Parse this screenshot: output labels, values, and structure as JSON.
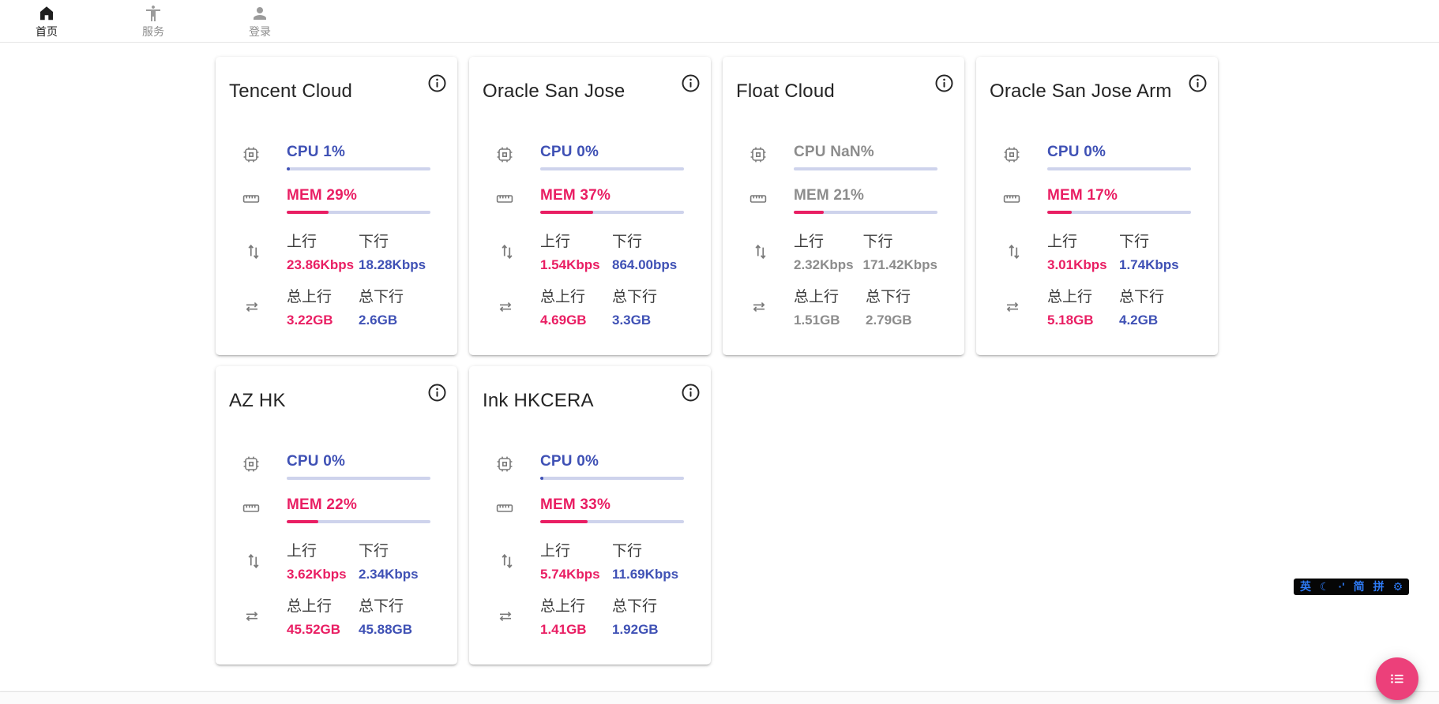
{
  "nav": {
    "home": {
      "label": "首页"
    },
    "services": {
      "label": "服务"
    },
    "login": {
      "label": "登录"
    }
  },
  "colors": {
    "accent_blue": "#3f51b5",
    "accent_pink": "#e91e63",
    "bar_track": "#ced3ec",
    "fab_pink": "#ec407a",
    "ime_blue": "#2e7bf6"
  },
  "servers": [
    {
      "name": "Tencent Cloud",
      "offline": false,
      "cpu_label": "CPU 1%",
      "cpu_bar_pct": 2,
      "mem_label": "MEM 29%",
      "mem_bar_pct": 29,
      "up_label": "上行",
      "up_value": "23.86Kbps",
      "down_label": "下行",
      "down_value": "18.28Kbps",
      "total_up_label": "总上行",
      "total_up_value": "3.22GB",
      "total_down_label": "总下行",
      "total_down_value": "2.6GB"
    },
    {
      "name": "Oracle San Jose",
      "offline": false,
      "cpu_label": "CPU 0%",
      "cpu_bar_pct": 0,
      "mem_label": "MEM 37%",
      "mem_bar_pct": 37,
      "up_label": "上行",
      "up_value": "1.54Kbps",
      "down_label": "下行",
      "down_value": "864.00bps",
      "total_up_label": "总上行",
      "total_up_value": "4.69GB",
      "total_down_label": "总下行",
      "total_down_value": "3.3GB"
    },
    {
      "name": "Float Cloud",
      "offline": true,
      "cpu_label": "CPU NaN%",
      "cpu_bar_pct": 0,
      "mem_label": "MEM 21%",
      "mem_bar_pct": 21,
      "up_label": "上行",
      "up_value": "2.32Kbps",
      "down_label": "下行",
      "down_value": "171.42Kbps",
      "total_up_label": "总上行",
      "total_up_value": "1.51GB",
      "total_down_label": "总下行",
      "total_down_value": "2.79GB"
    },
    {
      "name": "Oracle San Jose Arm",
      "offline": false,
      "cpu_label": "CPU 0%",
      "cpu_bar_pct": 0,
      "mem_label": "MEM 17%",
      "mem_bar_pct": 17,
      "up_label": "上行",
      "up_value": "3.01Kbps",
      "down_label": "下行",
      "down_value": "1.74Kbps",
      "total_up_label": "总上行",
      "total_up_value": "5.18GB",
      "total_down_label": "总下行",
      "total_down_value": "4.2GB"
    },
    {
      "name": "AZ HK",
      "offline": false,
      "cpu_label": "CPU 0%",
      "cpu_bar_pct": 0,
      "mem_label": "MEM 22%",
      "mem_bar_pct": 22,
      "up_label": "上行",
      "up_value": "3.62Kbps",
      "down_label": "下行",
      "down_value": "2.34Kbps",
      "total_up_label": "总上行",
      "total_up_value": "45.52GB",
      "total_down_label": "总下行",
      "total_down_value": "45.88GB"
    },
    {
      "name": "Ink HKCERA",
      "offline": false,
      "cpu_label": "CPU 0%",
      "cpu_bar_pct": 1,
      "mem_label": "MEM 33%",
      "mem_bar_pct": 33,
      "up_label": "上行",
      "up_value": "5.74Kbps",
      "down_label": "下行",
      "down_value": "11.69Kbps",
      "total_up_label": "总上行",
      "total_up_value": "1.41GB",
      "total_down_label": "总下行",
      "total_down_value": "1.92GB"
    }
  ],
  "ime": {
    "items": [
      "英",
      "☾",
      "·'",
      "简",
      "拼",
      "⚙"
    ]
  }
}
